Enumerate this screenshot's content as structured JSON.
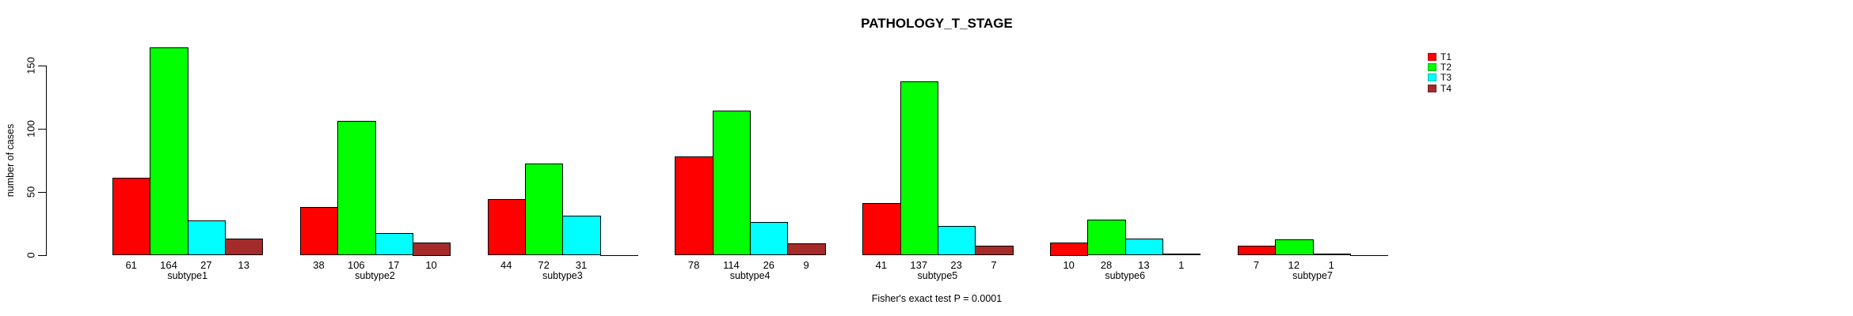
{
  "chart_data": {
    "type": "bar",
    "title": "PATHOLOGY_T_STAGE",
    "ylabel": "number of cases",
    "xlabel": "",
    "note": "Fisher's exact test P = 0.0001",
    "yticks": [
      0,
      50,
      100,
      150
    ],
    "ylim": [
      0,
      168
    ],
    "grid": false,
    "legend_position": "right-inside",
    "background": "#ffffff",
    "categories": [
      "subtype1",
      "subtype2",
      "subtype3",
      "subtype4",
      "subtype5",
      "subtype6",
      "subtype7"
    ],
    "series": [
      {
        "name": "T1",
        "color": "#ff0000",
        "values": [
          61,
          38,
          44,
          78,
          41,
          10,
          7
        ]
      },
      {
        "name": "T2",
        "color": "#00ff00",
        "values": [
          164,
          106,
          72,
          114,
          137,
          28,
          12
        ]
      },
      {
        "name": "T3",
        "color": "#00ffff",
        "values": [
          27,
          17,
          31,
          26,
          23,
          13,
          1
        ]
      },
      {
        "name": "T4",
        "color": "#a52a2a",
        "values": [
          13,
          10,
          0,
          9,
          7,
          1,
          0
        ]
      }
    ],
    "bar_value_labels_shown_only_if_positive": true
  }
}
